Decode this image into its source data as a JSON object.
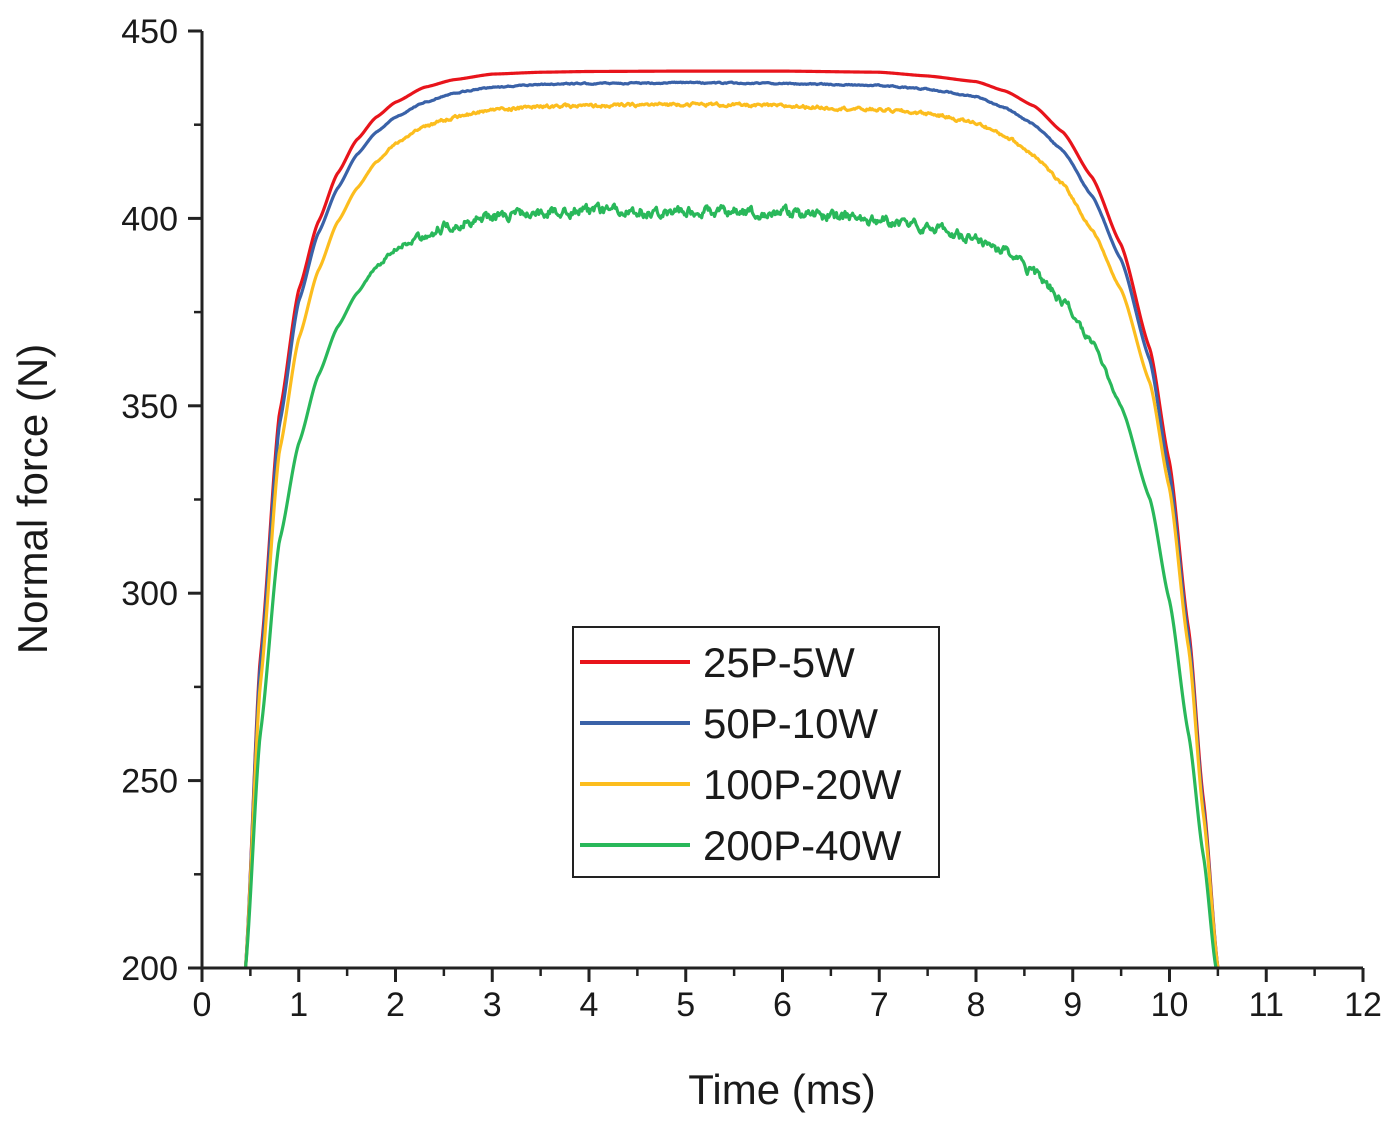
{
  "chart_data": {
    "type": "line",
    "title": "",
    "xlabel": "Time (ms)",
    "ylabel": "Normal force (N)",
    "xlim": [
      0,
      12
    ],
    "ylim": [
      200,
      450
    ],
    "xticks": [
      0,
      1,
      2,
      3,
      4,
      5,
      6,
      7,
      8,
      9,
      10,
      11,
      12
    ],
    "yticks": [
      200,
      250,
      300,
      350,
      400,
      450
    ],
    "grid": false,
    "legend_position": "bottom-center",
    "series": [
      {
        "name": "25P-5W",
        "color": "#e8141b",
        "noise": 0,
        "x": [
          0.45,
          0.6,
          0.8,
          1.0,
          1.2,
          1.4,
          1.6,
          1.8,
          2.0,
          2.3,
          2.6,
          3.0,
          3.5,
          4.0,
          5.0,
          6.0,
          7.0,
          7.5,
          8.0,
          8.3,
          8.6,
          8.9,
          9.2,
          9.5,
          9.8,
          10.0,
          10.2,
          10.35,
          10.5
        ],
        "y": [
          200,
          282,
          348,
          381,
          399,
          412,
          421,
          427,
          431,
          435,
          437,
          438.5,
          439,
          439.2,
          439.3,
          439.3,
          439,
          438,
          436.5,
          434,
          430,
          423,
          411,
          393,
          365,
          335,
          290,
          245,
          200
        ]
      },
      {
        "name": "50P-10W",
        "color": "#3a62a8",
        "noise": 0.15,
        "x": [
          0.45,
          0.6,
          0.8,
          1.0,
          1.2,
          1.4,
          1.6,
          1.8,
          2.0,
          2.3,
          2.6,
          3.0,
          3.5,
          4.0,
          5.0,
          6.0,
          7.0,
          7.5,
          8.0,
          8.3,
          8.6,
          8.9,
          9.2,
          9.5,
          9.8,
          10.0,
          10.2,
          10.35,
          10.5
        ],
        "y": [
          200,
          280,
          345,
          378,
          396,
          408,
          417,
          423,
          427,
          431,
          433.5,
          435,
          435.8,
          436,
          436.2,
          436,
          435.5,
          434.5,
          432.5,
          429.5,
          425,
          418,
          406,
          389,
          362,
          332,
          288,
          243,
          200
        ]
      },
      {
        "name": "100P-20W",
        "color": "#fcbd1e",
        "noise": 0.4,
        "x": [
          0.45,
          0.6,
          0.8,
          1.0,
          1.2,
          1.4,
          1.6,
          1.8,
          2.0,
          2.3,
          2.6,
          3.0,
          3.5,
          4.0,
          5.0,
          6.0,
          7.0,
          7.5,
          8.0,
          8.3,
          8.6,
          8.9,
          9.2,
          9.5,
          9.8,
          10.0,
          10.2,
          10.35,
          10.5
        ],
        "y": [
          200,
          275,
          338,
          368,
          386,
          399,
          408,
          415,
          420,
          424.5,
          427,
          429,
          429.8,
          430,
          430.5,
          430,
          429,
          428,
          425.5,
          422,
          417,
          409,
          397,
          381,
          356,
          328,
          285,
          241,
          200
        ]
      },
      {
        "name": "200P-40W",
        "color": "#29b85a",
        "noise": 1.3,
        "x": [
          0.45,
          0.6,
          0.8,
          1.0,
          1.2,
          1.4,
          1.6,
          1.8,
          2.0,
          2.3,
          2.6,
          3.0,
          3.5,
          4.0,
          5.0,
          6.0,
          7.0,
          7.5,
          8.0,
          8.3,
          8.6,
          8.9,
          9.2,
          9.5,
          9.8,
          10.0,
          10.2,
          10.35,
          10.48
        ],
        "y": [
          200,
          262,
          314,
          340,
          358,
          371,
          380,
          387,
          392,
          396,
          398.5,
          400.5,
          401.5,
          402,
          402,
          401.5,
          399.5,
          398,
          394.5,
          391,
          385.5,
          378,
          367,
          350,
          325,
          298,
          262,
          230,
          200
        ]
      }
    ]
  }
}
